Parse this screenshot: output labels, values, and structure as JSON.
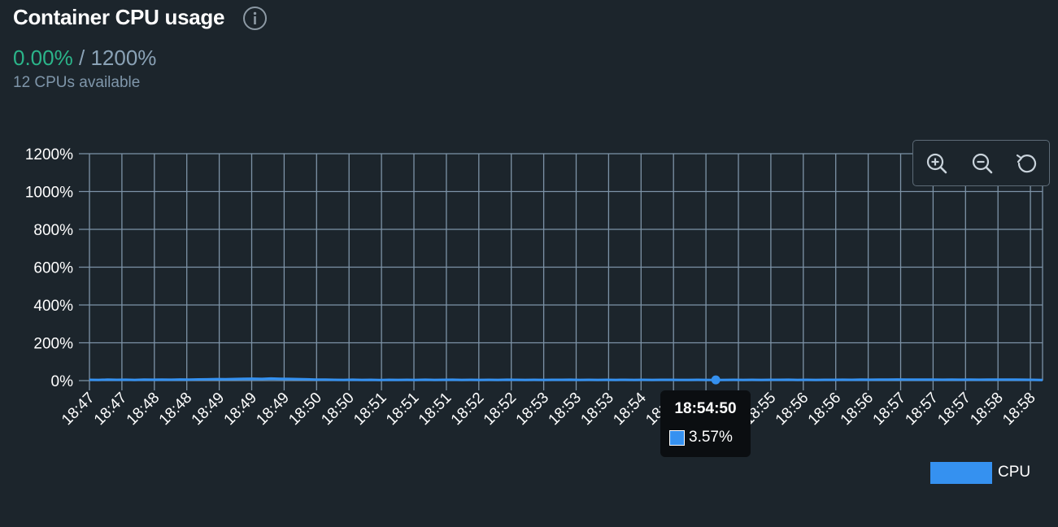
{
  "header": {
    "title": "Container CPU usage",
    "info_icon": "info-circle-icon"
  },
  "usage": {
    "current": "0.00%",
    "separator": "/",
    "max": "1200%",
    "available": "12 CPUs available"
  },
  "toolbar": {
    "zoom_in_icon": "zoom-in-icon",
    "zoom_out_icon": "zoom-out-icon",
    "reset_icon": "reset-zoom-icon"
  },
  "tooltip": {
    "time": "18:54:50",
    "value": "3.57%"
  },
  "colors": {
    "series": "#3591f0",
    "current_usage": "#2bb58a",
    "grid": "#7d93a7",
    "background": "#1c252c"
  },
  "chart_data": {
    "type": "area",
    "ylim": [
      0,
      1200
    ],
    "yticks": [
      0,
      200,
      400,
      600,
      800,
      1000,
      1200
    ],
    "ytick_labels": [
      "0%",
      "200%",
      "400%",
      "600%",
      "800%",
      "1000%",
      "1200%"
    ],
    "x_tick_labels": [
      "18:47",
      "18:47",
      "18:48",
      "18:48",
      "18:49",
      "18:49",
      "18:49",
      "18:50",
      "18:50",
      "18:51",
      "18:51",
      "18:51",
      "18:52",
      "18:52",
      "18:53",
      "18:53",
      "18:53",
      "18:54",
      "18:54",
      "18:55",
      "18:55",
      "18:55",
      "18:56",
      "18:56",
      "18:56",
      "18:57",
      "18:57",
      "18:57",
      "18:58",
      "18:58"
    ],
    "legend": "bottom-right",
    "grid": true,
    "series": [
      {
        "name": "CPU",
        "values": [
          4.5,
          3.8,
          5.0,
          4.2,
          4.8,
          3.9,
          5.2,
          4.6,
          5.5,
          4.9,
          6.0,
          5.3,
          6.4,
          7.0,
          8.0,
          7.2,
          8.5,
          9.5,
          10.2,
          9.0,
          11.0,
          10.0,
          9.2,
          8.0,
          6.8,
          5.0,
          5.5,
          4.4,
          4.0,
          4.6,
          3.8,
          4.2,
          3.6,
          4.5,
          3.9,
          4.3,
          4.0,
          4.8,
          3.7,
          4.1,
          4.6,
          3.9,
          4.3,
          4.0,
          4.4,
          3.8,
          4.7,
          4.2,
          4.0,
          4.5,
          3.9,
          4.3,
          4.1,
          4.6,
          3.8,
          4.2,
          4.0,
          4.4,
          3.9,
          4.3,
          4.0,
          4.5,
          3.8,
          4.1,
          4.3,
          3.9,
          4.0,
          4.4,
          3.8,
          3.57,
          3.9,
          4.2,
          4.0,
          4.5,
          3.8,
          4.3,
          4.1,
          4.6,
          3.9,
          4.2,
          4.0,
          4.4,
          4.3,
          4.8,
          4.5,
          5.0,
          4.6,
          5.5,
          5.2,
          6.0,
          5.6,
          5.8,
          5.0,
          5.4,
          4.8,
          5.0,
          4.6,
          5.2,
          4.8,
          5.6,
          5.0,
          5.8,
          5.2,
          4.8,
          4.5,
          3.6
        ]
      }
    ],
    "highlight_index": 69
  }
}
